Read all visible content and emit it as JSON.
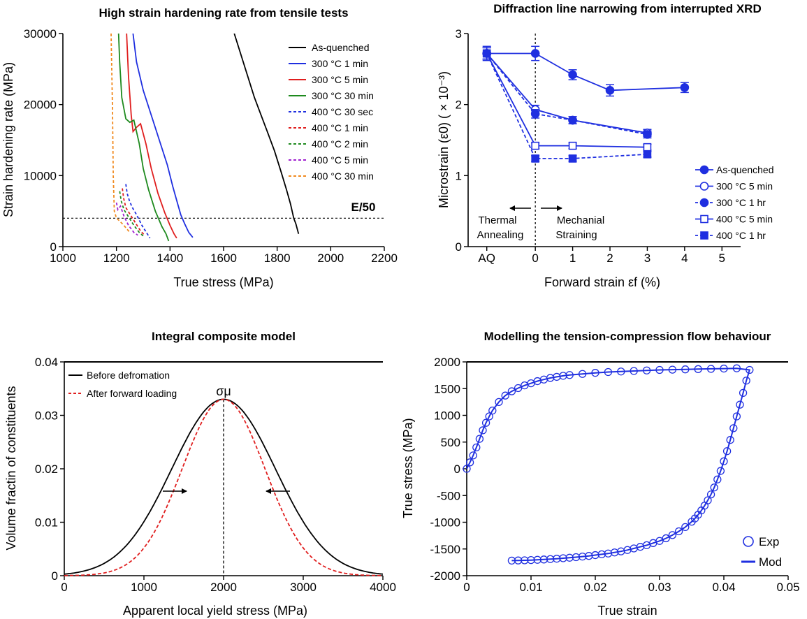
{
  "chart_data": [
    {
      "type": "line",
      "title": "High strain hardening rate from tensile tests",
      "xlabel": "True stress (MPa)",
      "ylabel": "Strain hardening rate (MPa)",
      "xlim": [
        1000,
        2200
      ],
      "ylim": [
        0,
        30000
      ],
      "xticks": [
        1000,
        1200,
        1400,
        1600,
        1800,
        2000,
        2200
      ],
      "yticks": [
        0,
        10000,
        20000,
        30000
      ],
      "legend_position": "top-right",
      "reference_line": {
        "y": 4000,
        "label": "E/50",
        "style": "dotted"
      },
      "series": [
        {
          "name": "As-quenched",
          "color": "#000000",
          "dash": false,
          "x": [
            1640,
            1665,
            1690,
            1715,
            1740,
            1765,
            1790,
            1815,
            1835,
            1850,
            1862,
            1870,
            1880
          ],
          "y": [
            30000,
            27000,
            24000,
            21000,
            18500,
            16000,
            13500,
            10500,
            8000,
            6000,
            4000,
            3200,
            1800
          ]
        },
        {
          "name": "300 °C 1 min",
          "color": "#1f2fe0",
          "dash": false,
          "x": [
            1262,
            1275,
            1300,
            1330,
            1360,
            1390,
            1410,
            1425,
            1440,
            1455,
            1470,
            1485
          ],
          "y": [
            30000,
            26000,
            22000,
            18500,
            15000,
            11500,
            8500,
            6500,
            4500,
            3200,
            2000,
            1300
          ]
        },
        {
          "name": "300 °C 5 min",
          "color": "#e01e1e",
          "dash": false,
          "x": [
            1238,
            1245,
            1255,
            1262,
            1275,
            1290,
            1310,
            1330,
            1355,
            1380,
            1400,
            1415,
            1425
          ],
          "y": [
            30000,
            24000,
            18500,
            16200,
            16800,
            17300,
            14500,
            11000,
            7500,
            4800,
            3000,
            1800,
            1200
          ]
        },
        {
          "name": "300 °C 30 min",
          "color": "#1e8a1e",
          "dash": false,
          "x": [
            1208,
            1212,
            1220,
            1235,
            1250,
            1265,
            1285,
            1300,
            1320,
            1345,
            1370,
            1385,
            1395
          ],
          "y": [
            30000,
            26000,
            21000,
            18000,
            17500,
            17800,
            14500,
            11000,
            8000,
            5000,
            2800,
            1800,
            800
          ]
        },
        {
          "name": "400 °C 30 sec",
          "color": "#1f2fe0",
          "dash": true,
          "x": [
            1235,
            1240,
            1248,
            1258,
            1275,
            1295,
            1315,
            1325
          ],
          "y": [
            8800,
            7500,
            6500,
            5600,
            4500,
            3000,
            1800,
            1200
          ]
        },
        {
          "name": "400 °C 1 min",
          "color": "#e01e1e",
          "dash": true,
          "x": [
            1222,
            1227,
            1235,
            1250,
            1270,
            1290,
            1305
          ],
          "y": [
            8200,
            6800,
            5500,
            4600,
            3400,
            2200,
            1600
          ]
        },
        {
          "name": "400 °C 2 min",
          "color": "#1e8a1e",
          "dash": true,
          "x": [
            1212,
            1218,
            1228,
            1245,
            1265,
            1285,
            1300
          ],
          "y": [
            7800,
            6400,
            5200,
            4200,
            3000,
            2000,
            1500
          ]
        },
        {
          "name": "400 °C 5 min",
          "color": "#a020d0",
          "dash": true,
          "x": [
            1200,
            1205,
            1215,
            1228,
            1245,
            1265,
            1280
          ],
          "y": [
            6200,
            5200,
            5700,
            4300,
            3000,
            2000,
            1600
          ]
        },
        {
          "name": "400 °C 30 min",
          "color": "#f08a20",
          "dash": true,
          "x": [
            1180,
            1185,
            1188,
            1192,
            1200,
            1215,
            1232,
            1250
          ],
          "y": [
            30000,
            20000,
            10000,
            5000,
            4000,
            3500,
            2800,
            2000
          ]
        }
      ]
    },
    {
      "type": "line",
      "title": "Diffraction line narrowing from interrupted XRD",
      "xlabel": "Forward strain εf (%)",
      "ylabel": "Microstrain (ε0) ( × 10⁻³)",
      "xlim": [
        -1.8,
        5.5
      ],
      "ylim": [
        0,
        3
      ],
      "xtick_labels": [
        {
          "x": -1.3,
          "label": "AQ"
        },
        {
          "x": 0,
          "label": "0"
        },
        {
          "x": 1,
          "label": "1"
        },
        {
          "x": 2,
          "label": "2"
        },
        {
          "x": 3,
          "label": "3"
        },
        {
          "x": 4,
          "label": "4"
        },
        {
          "x": 5,
          "label": "5"
        }
      ],
      "yticks": [
        0,
        1,
        2,
        3
      ],
      "legend_position": "bottom-right",
      "annotations": {
        "left_region_line1": "Thermal",
        "left_region_line2": "Annealing",
        "right_region_line1": "Mechanial",
        "right_region_line2": "Straining"
      },
      "series": [
        {
          "name": "As-quenched",
          "marker": "filled-circle",
          "dash": false,
          "color": "#1f2fe0",
          "x": [
            -1.3,
            0,
            1,
            2,
            4
          ],
          "y": [
            2.72,
            2.72,
            2.42,
            2.2,
            2.24
          ],
          "err": [
            0.1,
            0.1,
            0.07,
            0.08,
            0.07
          ]
        },
        {
          "name": "300 °C 5 min",
          "marker": "open-circle",
          "dash": false,
          "color": "#1f2fe0",
          "x": [
            -1.3,
            0,
            1,
            3
          ],
          "y": [
            2.72,
            1.93,
            1.78,
            1.6
          ],
          "err": [
            0.08,
            0.06,
            0.05,
            0.05
          ]
        },
        {
          "name": "300 °C 1 hr",
          "marker": "filled-circle",
          "dash": true,
          "color": "#1f2fe0",
          "x": [
            -1.3,
            0,
            1,
            3
          ],
          "y": [
            2.72,
            1.87,
            1.78,
            1.58
          ],
          "err": [
            0.08,
            0.06,
            0.05,
            0.05
          ]
        },
        {
          "name": "400 °C 5 min",
          "marker": "open-square",
          "dash": false,
          "color": "#1f2fe0",
          "x": [
            -1.3,
            0,
            1,
            3
          ],
          "y": [
            2.72,
            1.42,
            1.42,
            1.4
          ],
          "err": [
            0.08,
            0.04,
            0.04,
            0.04
          ]
        },
        {
          "name": "400 °C 1 hr",
          "marker": "filled-square",
          "dash": true,
          "color": "#1f2fe0",
          "x": [
            -1.3,
            0,
            1,
            3
          ],
          "y": [
            2.72,
            1.24,
            1.24,
            1.3
          ],
          "err": [
            0.08,
            0.04,
            0.04,
            0.04
          ]
        }
      ]
    },
    {
      "type": "line",
      "title": "Integral composite model",
      "xlabel": "Apparent local yield stress (MPa)",
      "ylabel": "Volume fractin of constituents",
      "xlim": [
        0,
        4000
      ],
      "ylim": [
        0,
        0.04
      ],
      "xticks": [
        0,
        1000,
        2000,
        3000,
        4000
      ],
      "yticks": [
        0,
        0.01,
        0.02,
        0.03,
        0.04
      ],
      "ytick_labels": [
        "0",
        "0.01",
        "0.02",
        "0.03",
        "0.04"
      ],
      "legend_position": "top-left",
      "peak_label": "σμ",
      "series": [
        {
          "name": "Before defromation",
          "color": "#000000",
          "dash": false,
          "mean": 2000,
          "sd": 650,
          "peak": 0.033
        },
        {
          "name": "After forward loading",
          "color": "#e01e1e",
          "dash": true,
          "mean": 2000,
          "sd": 520,
          "peak": 0.033
        }
      ]
    },
    {
      "type": "scatter",
      "title": "Modelling the tension-compression flow behaviour",
      "xlabel": "True strain",
      "ylabel": "True stress (MPa)",
      "xlim": [
        0,
        0.05
      ],
      "ylim": [
        -2000,
        2000
      ],
      "xticks": [
        0,
        0.01,
        0.02,
        0.03,
        0.04,
        0.05
      ],
      "yticks": [
        -2000,
        -1500,
        -1000,
        -500,
        0,
        500,
        1000,
        1500,
        2000
      ],
      "legend_position": "bottom-right",
      "series": [
        {
          "name": "Exp",
          "marker": "open-circle",
          "color": "#1f2fe0",
          "loading": [
            [
              0,
              0
            ],
            [
              0.0005,
              120
            ],
            [
              0.001,
              250
            ],
            [
              0.0015,
              400
            ],
            [
              0.002,
              560
            ],
            [
              0.0025,
              720
            ],
            [
              0.003,
              860
            ],
            [
              0.0035,
              980
            ],
            [
              0.004,
              1090
            ],
            [
              0.005,
              1250
            ],
            [
              0.006,
              1370
            ],
            [
              0.007,
              1450
            ],
            [
              0.008,
              1510
            ],
            [
              0.009,
              1560
            ],
            [
              0.01,
              1600
            ],
            [
              0.011,
              1640
            ],
            [
              0.012,
              1670
            ],
            [
              0.013,
              1700
            ],
            [
              0.014,
              1720
            ],
            [
              0.015,
              1740
            ],
            [
              0.016,
              1755
            ],
            [
              0.018,
              1775
            ],
            [
              0.02,
              1795
            ],
            [
              0.022,
              1810
            ],
            [
              0.024,
              1820
            ],
            [
              0.026,
              1830
            ],
            [
              0.028,
              1840
            ],
            [
              0.03,
              1850
            ],
            [
              0.032,
              1855
            ],
            [
              0.034,
              1860
            ],
            [
              0.036,
              1865
            ],
            [
              0.038,
              1870
            ],
            [
              0.04,
              1875
            ],
            [
              0.042,
              1880
            ],
            [
              0.044,
              1850
            ]
          ],
          "unloading": [
            [
              0.044,
              1850
            ],
            [
              0.0435,
              1650
            ],
            [
              0.043,
              1420
            ],
            [
              0.0425,
              1200
            ],
            [
              0.042,
              980
            ],
            [
              0.0415,
              760
            ],
            [
              0.041,
              540
            ],
            [
              0.0405,
              330
            ],
            [
              0.04,
              140
            ],
            [
              0.0395,
              -40
            ],
            [
              0.039,
              -200
            ],
            [
              0.0385,
              -350
            ],
            [
              0.038,
              -480
            ],
            [
              0.0375,
              -590
            ],
            [
              0.037,
              -690
            ],
            [
              0.0365,
              -780
            ],
            [
              0.036,
              -860
            ],
            [
              0.0355,
              -930
            ],
            [
              0.035,
              -990
            ],
            [
              0.034,
              -1090
            ],
            [
              0.033,
              -1170
            ],
            [
              0.032,
              -1240
            ],
            [
              0.031,
              -1300
            ],
            [
              0.03,
              -1350
            ],
            [
              0.029,
              -1390
            ],
            [
              0.028,
              -1430
            ],
            [
              0.027,
              -1460
            ],
            [
              0.026,
              -1490
            ],
            [
              0.025,
              -1520
            ],
            [
              0.024,
              -1545
            ],
            [
              0.023,
              -1565
            ],
            [
              0.022,
              -1585
            ],
            [
              0.021,
              -1600
            ],
            [
              0.02,
              -1615
            ],
            [
              0.019,
              -1630
            ],
            [
              0.018,
              -1642
            ],
            [
              0.017,
              -1654
            ],
            [
              0.016,
              -1664
            ],
            [
              0.015,
              -1673
            ],
            [
              0.014,
              -1682
            ],
            [
              0.013,
              -1690
            ],
            [
              0.012,
              -1697
            ],
            [
              0.011,
              -1703
            ],
            [
              0.01,
              -1708
            ],
            [
              0.009,
              -1712
            ],
            [
              0.008,
              -1715
            ],
            [
              0.007,
              -1718
            ]
          ]
        },
        {
          "name": "Mod",
          "marker": "line",
          "color": "#1f2fe0"
        }
      ]
    }
  ]
}
